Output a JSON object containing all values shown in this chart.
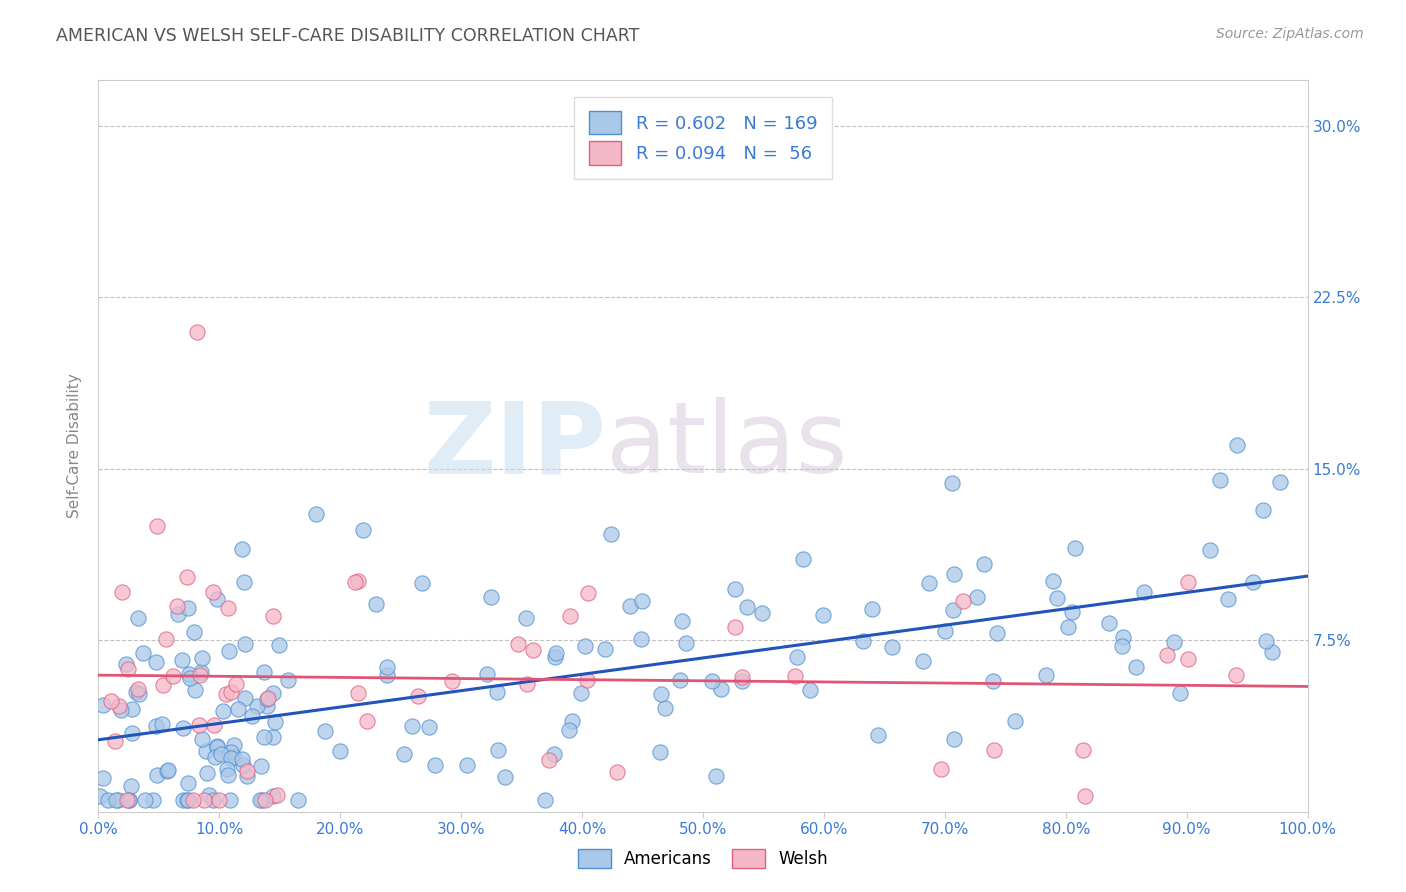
{
  "title": "AMERICAN VS WELSH SELF-CARE DISABILITY CORRELATION CHART",
  "source": "Source: ZipAtlas.com",
  "ylabel": "Self-Care Disability",
  "xlim": [
    0.0,
    1.0
  ],
  "ylim": [
    0.0,
    0.32
  ],
  "ytick_vals": [
    0.075,
    0.15,
    0.225,
    0.3
  ],
  "ytick_labels": [
    "7.5%",
    "15.0%",
    "22.5%",
    "30.0%"
  ],
  "xtick_vals": [
    0.0,
    0.1,
    0.2,
    0.3,
    0.4,
    0.5,
    0.6,
    0.7,
    0.8,
    0.9,
    1.0
  ],
  "xtick_labels": [
    "0.0%",
    "",
    "",
    "",
    "",
    "",
    "",
    "",
    "",
    "",
    "100.0%"
  ],
  "american_color": "#aac8e8",
  "welsh_color": "#f4b8c8",
  "american_edge_color": "#5090d0",
  "welsh_edge_color": "#e06080",
  "american_line_color": "#2255bb",
  "welsh_line_color": "#e05575",
  "R_american": 0.602,
  "N_american": 169,
  "R_welsh": 0.094,
  "N_welsh": 56,
  "legend_label_american": "Americans",
  "legend_label_welsh": "Welsh",
  "watermark_zip": "ZIP",
  "watermark_atlas": "atlas",
  "background_color": "#ffffff",
  "grid_color": "#bbbbbb",
  "title_color": "#555555",
  "axis_label_color": "#888888",
  "tick_color": "#3a7bd5",
  "source_color": "#999999"
}
